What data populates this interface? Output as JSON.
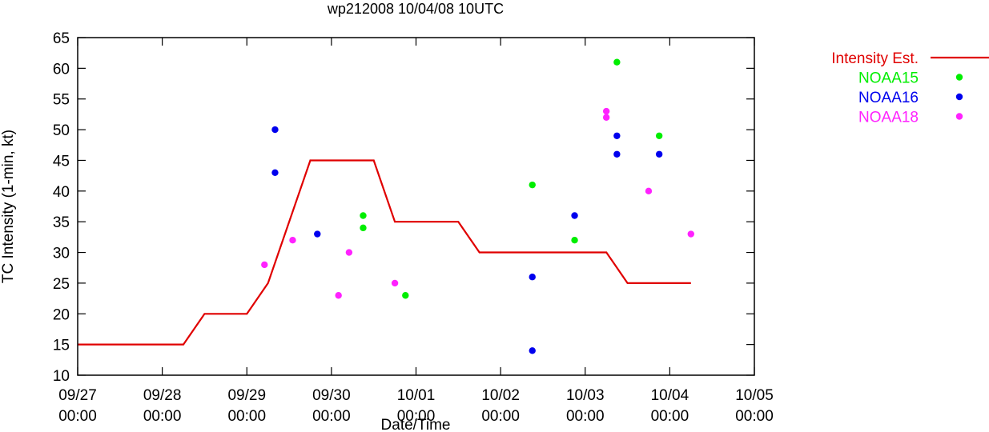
{
  "chart_data": {
    "type": "scatter",
    "title": "wp212008 10/04/08 10UTC",
    "xlabel": "Date/Time",
    "ylabel": "TC Intensity (1-min, kt)",
    "xlim": [
      "2008-09-27T00:00",
      "2008-10-05T00:00"
    ],
    "ylim": [
      10,
      65
    ],
    "y_ticks": [
      10,
      15,
      20,
      25,
      30,
      35,
      40,
      45,
      50,
      55,
      60,
      65
    ],
    "x_ticks": [
      {
        "date": "2008-09-27T00:00",
        "label1": "09/27",
        "label2": "00:00"
      },
      {
        "date": "2008-09-28T00:00",
        "label1": "09/28",
        "label2": "00:00"
      },
      {
        "date": "2008-09-29T00:00",
        "label1": "09/29",
        "label2": "00:00"
      },
      {
        "date": "2008-09-30T00:00",
        "label1": "09/30",
        "label2": "00:00"
      },
      {
        "date": "2008-10-01T00:00",
        "label1": "10/01",
        "label2": "00:00"
      },
      {
        "date": "2008-10-02T00:00",
        "label1": "10/02",
        "label2": "00:00"
      },
      {
        "date": "2008-10-03T00:00",
        "label1": "10/03",
        "label2": "00:00"
      },
      {
        "date": "2008-10-04T00:00",
        "label1": "10/04",
        "label2": "00:00"
      },
      {
        "date": "2008-10-05T00:00",
        "label1": "10/05",
        "label2": "00:00"
      }
    ],
    "grid": false,
    "legend_position": "outside-right",
    "series": [
      {
        "name": "Intensity Est.",
        "kind": "line",
        "color": "#e00000",
        "points": [
          [
            "2008-09-27T00:00",
            15
          ],
          [
            "2008-09-28T06:00",
            15
          ],
          [
            "2008-09-28T12:00",
            20
          ],
          [
            "2008-09-29T00:00",
            20
          ],
          [
            "2008-09-29T06:00",
            25
          ],
          [
            "2008-09-29T18:00",
            45
          ],
          [
            "2008-09-30T12:00",
            45
          ],
          [
            "2008-09-30T18:00",
            35
          ],
          [
            "2008-10-01T12:00",
            35
          ],
          [
            "2008-10-01T18:00",
            30
          ],
          [
            "2008-10-03T06:00",
            30
          ],
          [
            "2008-10-03T12:00",
            25
          ],
          [
            "2008-10-04T06:00",
            25
          ]
        ]
      },
      {
        "name": "NOAA15",
        "kind": "points",
        "color": "#00ee00",
        "points": [
          [
            "2008-09-30T09:00",
            36
          ],
          [
            "2008-09-30T09:00",
            34
          ],
          [
            "2008-09-30T21:00",
            23
          ],
          [
            "2008-10-02T09:00",
            41
          ],
          [
            "2008-10-02T21:00",
            32
          ],
          [
            "2008-10-03T09:00",
            61
          ],
          [
            "2008-10-03T21:00",
            49
          ]
        ]
      },
      {
        "name": "NOAA16",
        "kind": "points",
        "color": "#0000ee",
        "points": [
          [
            "2008-09-29T08:00",
            50
          ],
          [
            "2008-09-29T08:00",
            43
          ],
          [
            "2008-09-29T20:00",
            33
          ],
          [
            "2008-10-02T09:00",
            26
          ],
          [
            "2008-10-02T09:00",
            14
          ],
          [
            "2008-10-02T21:00",
            36
          ],
          [
            "2008-10-03T09:00",
            49
          ],
          [
            "2008-10-03T09:00",
            46
          ],
          [
            "2008-10-03T21:00",
            46
          ]
        ]
      },
      {
        "name": "NOAA18",
        "kind": "points",
        "color": "#ff22ff",
        "points": [
          [
            "2008-09-29T05:00",
            28
          ],
          [
            "2008-09-29T13:00",
            32
          ],
          [
            "2008-09-30T02:00",
            23
          ],
          [
            "2008-09-30T05:00",
            30
          ],
          [
            "2008-09-30T18:00",
            25
          ],
          [
            "2008-10-03T06:00",
            53
          ],
          [
            "2008-10-03T06:00",
            52
          ],
          [
            "2008-10-03T18:00",
            40
          ],
          [
            "2008-10-04T06:00",
            33
          ]
        ]
      }
    ]
  }
}
